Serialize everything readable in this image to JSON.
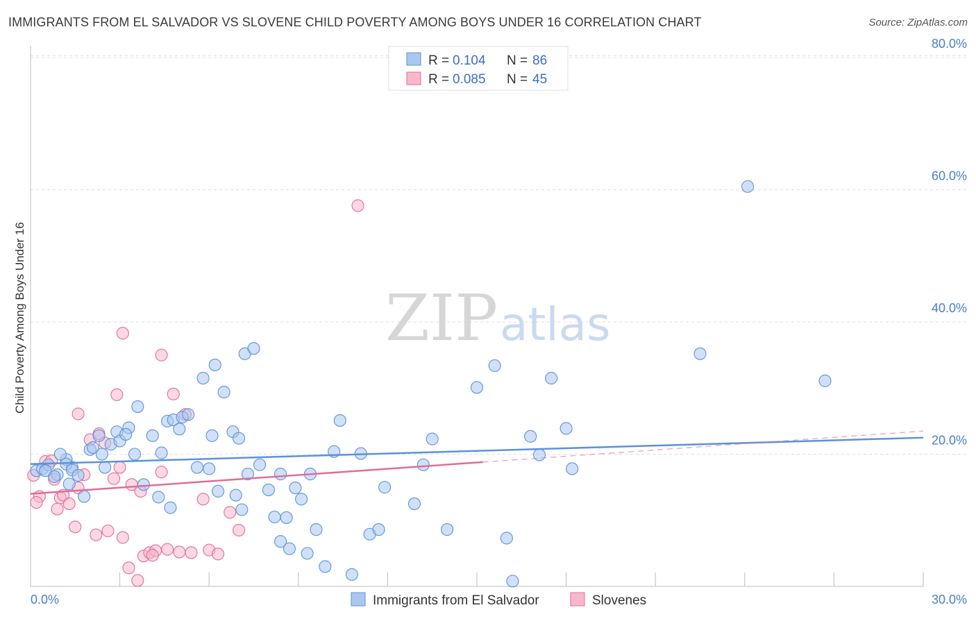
{
  "title": "IMMIGRANTS FROM EL SALVADOR VS SLOVENE CHILD POVERTY AMONG BOYS UNDER 16 CORRELATION CHART",
  "source": "Source: ZipAtlas.com",
  "watermark": {
    "zip": "ZIP",
    "atlas": "atlas"
  },
  "legend": {
    "rows": [
      {
        "r_label": "R =",
        "r_value": "0.104",
        "n_label": "N =",
        "n_value": "86",
        "color": "#aac7ee"
      },
      {
        "r_label": "R =",
        "r_value": "0.085",
        "n_label": "N =",
        "n_value": "45",
        "color": "#f7b8cc"
      }
    ]
  },
  "chart_data": {
    "type": "scatter",
    "title": "IMMIGRANTS FROM EL SALVADOR VS SLOVENE CHILD POVERTY AMONG BOYS UNDER 16 CORRELATION CHART",
    "xlabel": "",
    "ylabel": "Child Poverty Among Boys Under 16",
    "xlim": [
      0,
      30
    ],
    "ylim": [
      0,
      82
    ],
    "x_tick_labels": [
      "0.0%",
      "30.0%"
    ],
    "y_ticks": [
      20,
      40,
      60,
      80
    ],
    "y_tick_labels": [
      "20.0%",
      "40.0%",
      "60.0%",
      "80.0%"
    ],
    "grid": true,
    "legend_position": "top-center",
    "series": [
      {
        "name": "Immigrants from El Salvador",
        "color": "#5b92dc",
        "fill": "#aac7ee",
        "trend": {
          "x": [
            0,
            30
          ],
          "y": [
            18.5,
            22.5
          ]
        },
        "points": [
          [
            0.2,
            17.5
          ],
          [
            0.4,
            17.8
          ],
          [
            0.6,
            18.4
          ],
          [
            0.5,
            17.5
          ],
          [
            1.2,
            19.2
          ],
          [
            1.4,
            18.0
          ],
          [
            1.0,
            20.0
          ],
          [
            1.2,
            18.5
          ],
          [
            1.3,
            15.5
          ],
          [
            0.9,
            16.9
          ],
          [
            1.4,
            17.6
          ],
          [
            1.6,
            16.8
          ],
          [
            2.0,
            20.7
          ],
          [
            2.1,
            21.0
          ],
          [
            2.4,
            20.0
          ],
          [
            2.5,
            18.0
          ],
          [
            2.7,
            21.5
          ],
          [
            2.3,
            22.8
          ],
          [
            2.9,
            23.4
          ],
          [
            3.0,
            22.0
          ],
          [
            3.3,
            24.0
          ],
          [
            3.2,
            23.0
          ],
          [
            3.5,
            20.0
          ],
          [
            3.6,
            27.2
          ],
          [
            3.8,
            15.4
          ],
          [
            4.1,
            22.8
          ],
          [
            4.4,
            20.2
          ],
          [
            4.6,
            25.0
          ],
          [
            4.8,
            25.2
          ],
          [
            5.1,
            25.6
          ],
          [
            5.0,
            23.8
          ],
          [
            5.3,
            26.0
          ],
          [
            4.3,
            13.5
          ],
          [
            4.7,
            11.9
          ],
          [
            5.6,
            18.0
          ],
          [
            5.8,
            31.5
          ],
          [
            6.0,
            17.8
          ],
          [
            6.1,
            22.8
          ],
          [
            6.2,
            33.5
          ],
          [
            6.5,
            29.4
          ],
          [
            6.8,
            23.4
          ],
          [
            7.0,
            22.4
          ],
          [
            7.2,
            35.2
          ],
          [
            7.5,
            36.0
          ],
          [
            6.3,
            14.4
          ],
          [
            6.9,
            13.8
          ],
          [
            7.1,
            11.6
          ],
          [
            7.3,
            17.0
          ],
          [
            7.7,
            18.4
          ],
          [
            8.0,
            14.6
          ],
          [
            8.4,
            17.0
          ],
          [
            8.2,
            10.5
          ],
          [
            8.6,
            10.4
          ],
          [
            8.9,
            14.9
          ],
          [
            9.1,
            13.2
          ],
          [
            9.4,
            17.0
          ],
          [
            9.6,
            8.6
          ],
          [
            9.3,
            5.0
          ],
          [
            8.7,
            5.7
          ],
          [
            8.4,
            6.8
          ],
          [
            10.2,
            20.4
          ],
          [
            9.9,
            3.0
          ],
          [
            10.4,
            25.1
          ],
          [
            10.8,
            1.8
          ],
          [
            11.1,
            20.1
          ],
          [
            11.4,
            7.9
          ],
          [
            11.7,
            8.6
          ],
          [
            11.9,
            15.0
          ],
          [
            12.9,
            12.5
          ],
          [
            13.2,
            18.4
          ],
          [
            13.5,
            22.3
          ],
          [
            14.0,
            8.6
          ],
          [
            15.0,
            30.1
          ],
          [
            15.6,
            33.4
          ],
          [
            16.2,
            0.8
          ],
          [
            16.0,
            7.3
          ],
          [
            16.8,
            22.7
          ],
          [
            17.1,
            19.9
          ],
          [
            17.5,
            31.5
          ],
          [
            18.0,
            23.9
          ],
          [
            18.2,
            17.8
          ],
          [
            22.5,
            35.2
          ],
          [
            24.1,
            60.5
          ],
          [
            26.7,
            31.1
          ],
          [
            1.8,
            13.6
          ],
          [
            0.8,
            16.6
          ]
        ]
      },
      {
        "name": "Slovenes",
        "color": "#e26c99",
        "fill": "#f7b8cc",
        "trend": {
          "x": [
            0,
            15.2
          ],
          "y": [
            14.0,
            18.8
          ]
        },
        "trend_dashed": {
          "x": [
            15.2,
            30
          ],
          "y": [
            18.8,
            23.5
          ]
        },
        "points": [
          [
            0.1,
            16.8
          ],
          [
            0.3,
            13.6
          ],
          [
            0.5,
            18.9
          ],
          [
            0.8,
            16.2
          ],
          [
            0.9,
            11.7
          ],
          [
            1.0,
            13.4
          ],
          [
            1.1,
            13.8
          ],
          [
            1.3,
            12.5
          ],
          [
            1.5,
            9.0
          ],
          [
            1.6,
            14.9
          ],
          [
            1.8,
            16.9
          ],
          [
            2.0,
            22.2
          ],
          [
            2.2,
            7.8
          ],
          [
            2.3,
            23.1
          ],
          [
            2.5,
            21.7
          ],
          [
            2.6,
            8.4
          ],
          [
            2.8,
            16.3
          ],
          [
            3.0,
            18.0
          ],
          [
            3.1,
            7.4
          ],
          [
            3.3,
            2.8
          ],
          [
            3.4,
            15.4
          ],
          [
            3.6,
            0.9
          ],
          [
            3.7,
            14.4
          ],
          [
            3.8,
            4.6
          ],
          [
            4.0,
            5.1
          ],
          [
            4.2,
            5.4
          ],
          [
            4.4,
            17.3
          ],
          [
            4.6,
            5.6
          ],
          [
            4.8,
            29.1
          ],
          [
            5.0,
            5.2
          ],
          [
            5.2,
            26.0
          ],
          [
            5.4,
            5.1
          ],
          [
            5.8,
            13.2
          ],
          [
            6.0,
            5.5
          ],
          [
            6.3,
            4.9
          ],
          [
            6.7,
            11.2
          ],
          [
            7.0,
            8.5
          ],
          [
            3.1,
            38.3
          ],
          [
            4.4,
            35.0
          ],
          [
            1.6,
            26.1
          ],
          [
            2.9,
            29.0
          ],
          [
            11.0,
            57.6
          ],
          [
            0.2,
            12.7
          ],
          [
            0.7,
            19.0
          ],
          [
            4.1,
            4.7
          ]
        ]
      }
    ]
  },
  "bottom_legend": [
    {
      "label": "Immigrants from El Salvador",
      "color": "#aac7ee",
      "stroke": "#5b92dc"
    },
    {
      "label": "Slovenes",
      "color": "#f7b8cc",
      "stroke": "#e26c99"
    }
  ]
}
